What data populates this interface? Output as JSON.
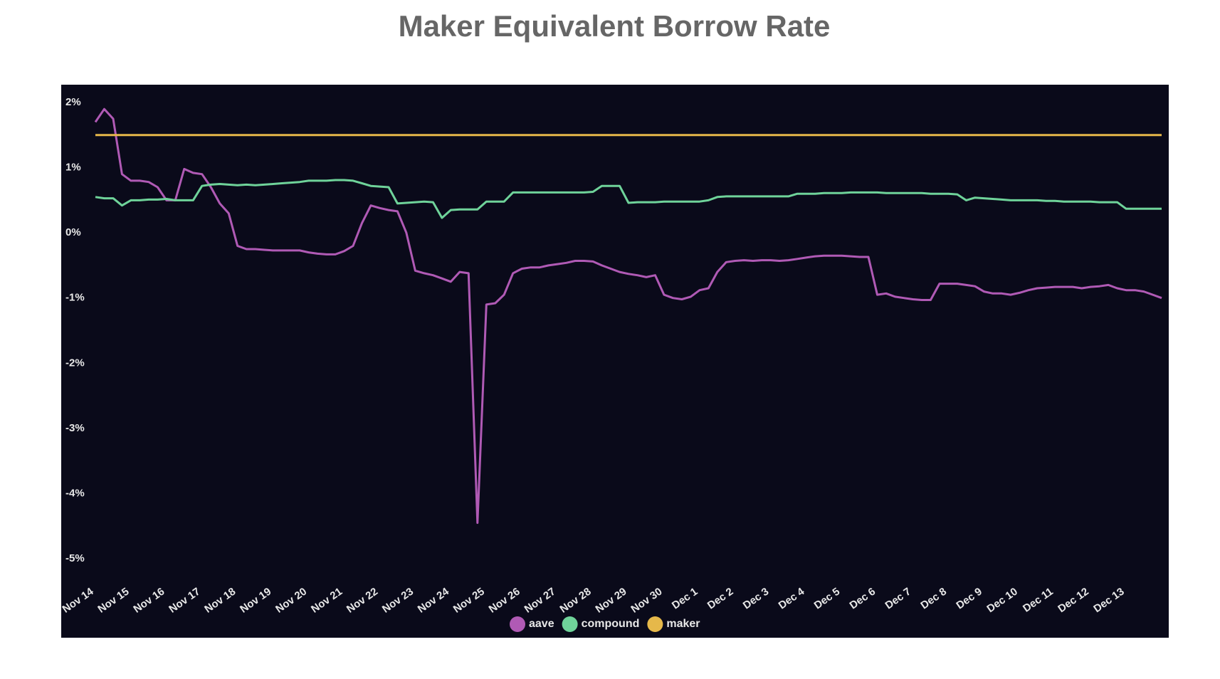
{
  "chart_data": {
    "type": "line",
    "title": "Maker Equivalent Borrow Rate",
    "categories": [
      "Nov 14",
      null,
      null,
      null,
      "Nov 15",
      null,
      null,
      null,
      "Nov 16",
      null,
      null,
      null,
      "Nov 17",
      null,
      null,
      null,
      "Nov 18",
      null,
      null,
      null,
      "Nov 19",
      null,
      null,
      null,
      "Nov 20",
      null,
      null,
      null,
      "Nov 21",
      null,
      null,
      null,
      "Nov 22",
      null,
      null,
      null,
      "Nov 23",
      null,
      null,
      null,
      "Nov 24",
      null,
      null,
      null,
      "Nov 25",
      null,
      null,
      null,
      "Nov 26",
      null,
      null,
      null,
      "Nov 27",
      null,
      null,
      null,
      "Nov 28",
      null,
      null,
      null,
      "Nov 29",
      null,
      null,
      null,
      "Nov 30",
      null,
      null,
      null,
      "Dec 1",
      null,
      null,
      null,
      "Dec 2",
      null,
      null,
      null,
      "Dec 3",
      null,
      null,
      null,
      "Dec 4",
      null,
      null,
      null,
      "Dec 5",
      null,
      null,
      null,
      "Dec 6",
      null,
      null,
      null,
      "Dec 7",
      null,
      null,
      null,
      "Dec 8",
      null,
      null,
      null,
      "Dec 9",
      null,
      null,
      null,
      "Dec 10",
      null,
      null,
      null,
      "Dec 11",
      null,
      null,
      null,
      "Dec 12",
      null,
      null,
      null,
      "Dec 13",
      null,
      null,
      null,
      null
    ],
    "series": [
      {
        "name": "aave",
        "color": "#b05ab5",
        "values": [
          1.7,
          1.9,
          1.75,
          0.9,
          0.8,
          0.8,
          0.78,
          0.7,
          0.5,
          0.5,
          0.98,
          0.92,
          0.9,
          0.7,
          0.45,
          0.3,
          -0.2,
          -0.25,
          -0.25,
          -0.26,
          -0.27,
          -0.27,
          -0.27,
          -0.27,
          -0.3,
          -0.32,
          -0.33,
          -0.33,
          -0.28,
          -0.2,
          0.15,
          0.42,
          0.38,
          0.35,
          0.33,
          0.0,
          -0.58,
          -0.62,
          -0.65,
          -0.7,
          -0.75,
          -0.6,
          -0.62,
          -4.45,
          -1.1,
          -1.08,
          -0.95,
          -0.62,
          -0.55,
          -0.53,
          -0.53,
          -0.5,
          -0.48,
          -0.46,
          -0.43,
          -0.43,
          -0.44,
          -0.5,
          -0.55,
          -0.6,
          -0.63,
          -0.65,
          -0.68,
          -0.65,
          -0.95,
          -1.0,
          -1.02,
          -0.98,
          -0.88,
          -0.85,
          -0.6,
          -0.45,
          -0.43,
          -0.42,
          -0.43,
          -0.42,
          -0.42,
          -0.43,
          -0.42,
          -0.4,
          -0.38,
          -0.36,
          -0.35,
          -0.35,
          -0.35,
          -0.36,
          -0.37,
          -0.37,
          -0.95,
          -0.93,
          -0.98,
          -1.0,
          -1.02,
          -1.03,
          -1.03,
          -0.78,
          -0.78,
          -0.78,
          -0.8,
          -0.82,
          -0.9,
          -0.93,
          -0.93,
          -0.95,
          -0.92,
          -0.88,
          -0.85,
          -0.84,
          -0.83,
          -0.83,
          -0.83,
          -0.85,
          -0.83,
          -0.82,
          -0.8,
          -0.85,
          -0.88,
          -0.88,
          -0.9,
          -0.95,
          -1.0
        ]
      },
      {
        "name": "compound",
        "color": "#6fd39a",
        "values": [
          0.55,
          0.53,
          0.53,
          0.42,
          0.5,
          0.5,
          0.51,
          0.51,
          0.52,
          0.5,
          0.5,
          0.5,
          0.72,
          0.74,
          0.75,
          0.74,
          0.73,
          0.74,
          0.73,
          0.74,
          0.75,
          0.76,
          0.77,
          0.78,
          0.8,
          0.8,
          0.8,
          0.81,
          0.81,
          0.8,
          0.76,
          0.72,
          0.71,
          0.7,
          0.45,
          0.46,
          0.47,
          0.48,
          0.47,
          0.23,
          0.35,
          0.36,
          0.36,
          0.36,
          0.48,
          0.48,
          0.48,
          0.62,
          0.62,
          0.62,
          0.62,
          0.62,
          0.62,
          0.62,
          0.62,
          0.62,
          0.63,
          0.72,
          0.72,
          0.72,
          0.46,
          0.47,
          0.47,
          0.47,
          0.48,
          0.48,
          0.48,
          0.48,
          0.48,
          0.5,
          0.55,
          0.56,
          0.56,
          0.56,
          0.56,
          0.56,
          0.56,
          0.56,
          0.56,
          0.6,
          0.6,
          0.6,
          0.61,
          0.61,
          0.61,
          0.62,
          0.62,
          0.62,
          0.62,
          0.61,
          0.61,
          0.61,
          0.61,
          0.61,
          0.6,
          0.6,
          0.6,
          0.59,
          0.5,
          0.54,
          0.53,
          0.52,
          0.51,
          0.5,
          0.5,
          0.5,
          0.5,
          0.49,
          0.49,
          0.48,
          0.48,
          0.48,
          0.48,
          0.47,
          0.47,
          0.47,
          0.37,
          0.37,
          0.37,
          0.37,
          0.37
        ]
      },
      {
        "name": "maker",
        "color": "#e6b84a",
        "values": [
          1.5,
          1.5,
          1.5,
          1.5,
          1.5,
          1.5,
          1.5,
          1.5,
          1.5,
          1.5,
          1.5,
          1.5,
          1.5,
          1.5,
          1.5,
          1.5,
          1.5,
          1.5,
          1.5,
          1.5,
          1.5,
          1.5,
          1.5,
          1.5,
          1.5,
          1.5,
          1.5,
          1.5,
          1.5,
          1.5,
          1.5,
          1.5,
          1.5,
          1.5,
          1.5,
          1.5,
          1.5,
          1.5,
          1.5,
          1.5,
          1.5,
          1.5,
          1.5,
          1.5,
          1.5,
          1.5,
          1.5,
          1.5,
          1.5,
          1.5,
          1.5,
          1.5,
          1.5,
          1.5,
          1.5,
          1.5,
          1.5,
          1.5,
          1.5,
          1.5,
          1.5,
          1.5,
          1.5,
          1.5,
          1.5,
          1.5,
          1.5,
          1.5,
          1.5,
          1.5,
          1.5,
          1.5,
          1.5,
          1.5,
          1.5,
          1.5,
          1.5,
          1.5,
          1.5,
          1.5,
          1.5,
          1.5,
          1.5,
          1.5,
          1.5,
          1.5,
          1.5,
          1.5,
          1.5,
          1.5,
          1.5,
          1.5,
          1.5,
          1.5,
          1.5,
          1.5,
          1.5,
          1.5,
          1.5,
          1.5,
          1.5,
          1.5,
          1.5,
          1.5,
          1.5,
          1.5,
          1.5,
          1.5,
          1.5,
          1.5,
          1.5,
          1.5,
          1.5,
          1.5,
          1.5,
          1.5,
          1.5,
          1.5,
          1.5,
          1.5,
          1.5
        ]
      }
    ],
    "ylim": [
      -5,
      2
    ],
    "yticks": [
      {
        "value": 2,
        "label": "2%"
      },
      {
        "value": 1,
        "label": "1%"
      },
      {
        "value": 0,
        "label": "0%"
      },
      {
        "value": -1,
        "label": "-1%"
      },
      {
        "value": -2,
        "label": "-2%"
      },
      {
        "value": -3,
        "label": "-3%"
      },
      {
        "value": -4,
        "label": "-4%"
      },
      {
        "value": -5,
        "label": "-5%"
      }
    ],
    "grid": false,
    "legend": "bottom"
  }
}
